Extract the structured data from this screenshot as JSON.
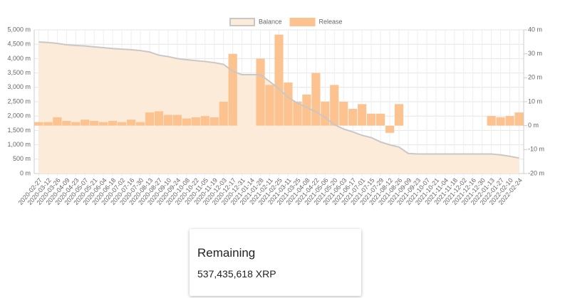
{
  "chart_data": {
    "type": "bar-line",
    "categories": [
      "2020-02-27",
      "2020-03-12",
      "2020-03-26",
      "2020-04-09",
      "2020-04-23",
      "2020-05-07",
      "2020-05-21",
      "2020-06-04",
      "2020-06-18",
      "2020-07-02",
      "2020-07-16",
      "2020-07-30",
      "2020-08-13",
      "2020-08-27",
      "2020-09-10",
      "2020-09-24",
      "2020-10-08",
      "2020-10-22",
      "2020-11-05",
      "2020-11-19",
      "2020-12-03",
      "2020-12-17",
      "2020-12-31",
      "2021-01-14",
      "2021-01-28",
      "2021-02-11",
      "2021-02-25",
      "2021-03-11",
      "2021-03-25",
      "2021-04-08",
      "2021-04-22",
      "2021-05-06",
      "2021-05-20",
      "2021-06-03",
      "2021-06-17",
      "2021-07-01",
      "2021-07-15",
      "2021-07-29",
      "2021-08-12",
      "2021-08-26",
      "2021-09-09",
      "2021-09-23",
      "2021-10-07",
      "2021-10-21",
      "2021-11-04",
      "2021-11-18",
      "2021-12-02",
      "2021-12-16",
      "2021-12-30",
      "2022-01-13",
      "2022-01-27",
      "2022-02-10",
      "2022-02-24"
    ],
    "series": [
      {
        "name": "Balance",
        "color": "#c8c8c8",
        "fill": "#fdebd9",
        "axis": "y",
        "values": [
          4580,
          4560,
          4530,
          4480,
          4460,
          4440,
          4410,
          4380,
          4350,
          4330,
          4310,
          4280,
          4230,
          4120,
          4070,
          4000,
          3960,
          3930,
          3900,
          3860,
          3800,
          3560,
          3440,
          3440,
          3440,
          3200,
          2950,
          2650,
          2450,
          2300,
          2150,
          1950,
          1700,
          1550,
          1450,
          1330,
          1250,
          1100,
          1000,
          920,
          700,
          680,
          680,
          680,
          680,
          680,
          680,
          680,
          680,
          680,
          650,
          600,
          540
        ]
      },
      {
        "name": "Release",
        "color": "#fcc28f",
        "axis": "y2",
        "values": [
          1.5,
          1.5,
          3.5,
          2,
          1.5,
          2.5,
          2,
          1.5,
          2,
          1.5,
          2.5,
          1.5,
          5.5,
          6,
          4.5,
          4.5,
          3,
          3.5,
          4,
          3.5,
          10,
          30,
          0,
          0,
          28,
          17,
          38,
          18,
          10,
          13,
          22,
          10,
          17,
          10,
          7,
          9,
          5,
          5,
          -3,
          9,
          0,
          0,
          0,
          0,
          0,
          0,
          0,
          0,
          0,
          4,
          3.5,
          4,
          5.5
        ]
      }
    ],
    "ylim": [
      0,
      5000
    ],
    "yticks": [
      {
        "value": 0,
        "label": "0 m"
      },
      {
        "value": 500,
        "label": "500 m"
      },
      {
        "value": 1000,
        "label": "1,000 m"
      },
      {
        "value": 1500,
        "label": "1,500 m"
      },
      {
        "value": 2000,
        "label": "2,000 m"
      },
      {
        "value": 2500,
        "label": "2,500 m"
      },
      {
        "value": 3000,
        "label": "3,000 m"
      },
      {
        "value": 3500,
        "label": "3,500 m"
      },
      {
        "value": 4000,
        "label": "4,000 m"
      },
      {
        "value": 4500,
        "label": "4,500 m"
      },
      {
        "value": 5000,
        "label": "5,000 m"
      }
    ],
    "y2lim": [
      -20,
      40
    ],
    "y2ticks": [
      {
        "value": -20,
        "label": "-20 m"
      },
      {
        "value": -10,
        "label": "-10 m"
      },
      {
        "value": 0,
        "label": "0 m"
      },
      {
        "value": 10,
        "label": "10 m"
      },
      {
        "value": 20,
        "label": "20 m"
      },
      {
        "value": 30,
        "label": "30 m"
      },
      {
        "value": 40,
        "label": "40 m"
      }
    ],
    "grid": true,
    "legend": "top"
  },
  "card": {
    "title": "Remaining",
    "value": "537,435,618 XRP"
  }
}
